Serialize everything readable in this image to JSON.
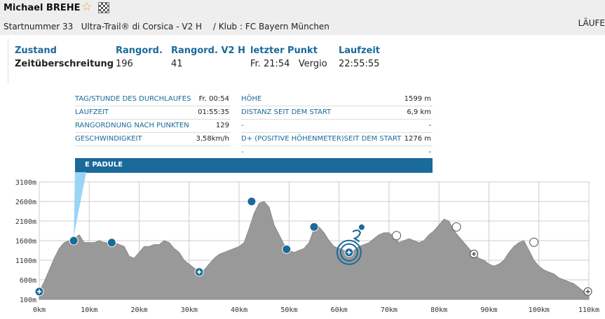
{
  "header": {
    "runner_name": "Michael BREHE",
    "icons": [
      "star-icon",
      "checkered-flag-icon"
    ],
    "bib": "Startnummer 33",
    "race": "Ultra-Trail® di Corsica - V2 H",
    "separator": "/",
    "club": "Klub : FC Bayern München",
    "right_label": "LÄUFE"
  },
  "status": {
    "zustand": {
      "label": "Zustand",
      "value": "Zeitüberschreitung"
    },
    "rangord": {
      "label": "Rangord.",
      "value": "196"
    },
    "rangord_v2h": {
      "label": "Rangord. V2 H",
      "value": "41"
    },
    "letzter_punkt": {
      "label": "letzter Punkt",
      "time": "Fr. 21:54",
      "place": "Vergio"
    },
    "laufzeit": {
      "label": "Laufzeit",
      "value": "22:55:55"
    }
  },
  "point_info": {
    "left": [
      {
        "label": "TAG/STUNDE DES DURCHLAUFES",
        "value": "Fr. 00:54"
      },
      {
        "label": "LAUFZEIT",
        "value": "01:55:35"
      },
      {
        "label": "RANGORDNUNG NACH PUNKTEN",
        "value": "129"
      },
      {
        "label": "GESCHWINDIGKEIT",
        "value": "3,58km/h"
      }
    ],
    "right": [
      {
        "label": "HÖHE",
        "value": "1599 m"
      },
      {
        "label": "DISTANZ SEIT DEM START",
        "value": "6,9 km"
      },
      {
        "label": "-",
        "value": "-"
      },
      {
        "label": "D+ (POSITIVE HÖHENMETER)SEIT DEM START",
        "value": "1276 m"
      },
      {
        "label": "-",
        "value": "-"
      }
    ],
    "checkpoint_name": "E PADULE"
  },
  "chart_data": {
    "type": "area",
    "xlabel": "",
    "ylabel": "",
    "xlim": [
      0,
      110
    ],
    "ylim": [
      100,
      3100
    ],
    "x_ticks": [
      "0km",
      "10km",
      "20km",
      "30km",
      "40km",
      "50km",
      "60km",
      "70km",
      "80km",
      "90km",
      "100km",
      "110km"
    ],
    "y_ticks": [
      "100m",
      "600m",
      "1100m",
      "1600m",
      "2100m",
      "2600m",
      "3100m"
    ],
    "profile": {
      "x": [
        0,
        1,
        2,
        3,
        4,
        5,
        6,
        7,
        8,
        9,
        10,
        11,
        12,
        13,
        14,
        15,
        16,
        17,
        18,
        19,
        20,
        21,
        22,
        23,
        24,
        25,
        26,
        27,
        28,
        29,
        30,
        31,
        32,
        33,
        34,
        35,
        36,
        37,
        38,
        39,
        40,
        41,
        42,
        43,
        44,
        45,
        46,
        47,
        48,
        49,
        50,
        51,
        52,
        53,
        54,
        55,
        56,
        57,
        58,
        59,
        60,
        61,
        62,
        63,
        64,
        65,
        66,
        67,
        68,
        69,
        70,
        71,
        72,
        73,
        74,
        75,
        76,
        77,
        78,
        79,
        80,
        81,
        82,
        83,
        84,
        85,
        86,
        87,
        88,
        89,
        90,
        91,
        92,
        93,
        94,
        95,
        96,
        97,
        98,
        99,
        100,
        101,
        102,
        103,
        104,
        105,
        106,
        107,
        108,
        109,
        110
      ],
      "y": [
        300,
        550,
        850,
        1150,
        1400,
        1550,
        1600,
        1650,
        1750,
        1550,
        1550,
        1550,
        1600,
        1550,
        1550,
        1550,
        1500,
        1450,
        1200,
        1150,
        1300,
        1450,
        1450,
        1500,
        1500,
        1600,
        1550,
        1400,
        1300,
        1100,
        1000,
        900,
        800,
        850,
        1000,
        1150,
        1250,
        1300,
        1350,
        1400,
        1450,
        1550,
        1900,
        2300,
        2550,
        2600,
        2450,
        2000,
        1750,
        1500,
        1350,
        1300,
        1350,
        1400,
        1550,
        1900,
        1950,
        1800,
        1600,
        1450,
        1400,
        1350,
        1300,
        1350,
        1450,
        1500,
        1550,
        1650,
        1750,
        1800,
        1800,
        1700,
        1550,
        1600,
        1650,
        1600,
        1550,
        1600,
        1750,
        1850,
        2000,
        2150,
        2100,
        1850,
        1700,
        1550,
        1400,
        1250,
        1150,
        1100,
        1000,
        950,
        1000,
        1100,
        1300,
        1450,
        1550,
        1600,
        1350,
        1100,
        950,
        850,
        800,
        750,
        650,
        600,
        550,
        500,
        400,
        300,
        250
      ]
    },
    "markers": [
      {
        "x": 0,
        "y": 300,
        "kind": "plus-filled"
      },
      {
        "x": 6.9,
        "y": 1599,
        "kind": "filled"
      },
      {
        "x": 14.5,
        "y": 1550,
        "kind": "filled"
      },
      {
        "x": 32,
        "y": 800,
        "kind": "plus-filled"
      },
      {
        "x": 42.5,
        "y": 2600,
        "kind": "filled"
      },
      {
        "x": 49.5,
        "y": 1380,
        "kind": "filled"
      },
      {
        "x": 55,
        "y": 1950,
        "kind": "filled"
      },
      {
        "x": 62,
        "y": 1300,
        "kind": "runner-position"
      },
      {
        "x": 71.5,
        "y": 1730,
        "kind": "open"
      },
      {
        "x": 83.5,
        "y": 1950,
        "kind": "open"
      },
      {
        "x": 87,
        "y": 1260,
        "kind": "plus-open"
      },
      {
        "x": 99,
        "y": 1560,
        "kind": "open"
      },
      {
        "x": 109.8,
        "y": 300,
        "kind": "plus-open"
      }
    ],
    "colors": {
      "area": "#999999",
      "grid": "#cccccc",
      "marker_blue": "#1a6a9a",
      "banner": "#1a6a9a",
      "pointer": "#8fd0f5"
    },
    "highlighted_point_km": 6.9
  }
}
